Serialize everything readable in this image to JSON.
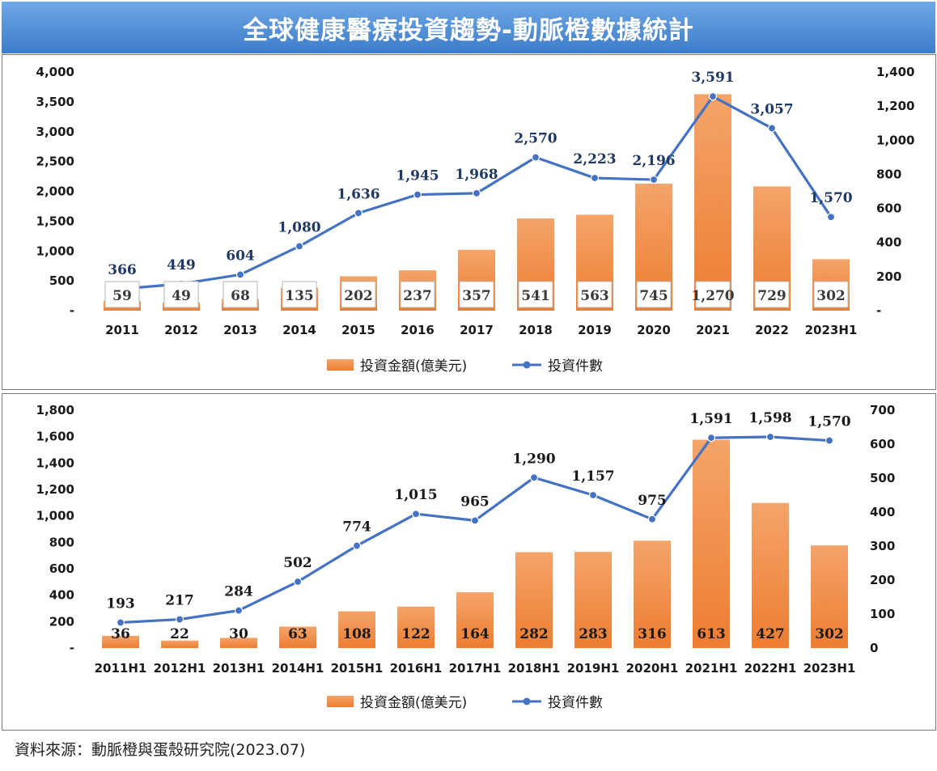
{
  "title": "全球健康醫療投資趨勢-動脈橙數據統計",
  "source": "資料來源：動脈橙與蛋殼研究院(2023.07)",
  "colors": {
    "bar": "#ED7D31",
    "line": "#4472C4",
    "title_bg": "#4F8BD6",
    "count_label": "#1F3864"
  },
  "chart_data": [
    {
      "type": "bar+line",
      "categories": [
        "2011",
        "2012",
        "2013",
        "2014",
        "2015",
        "2016",
        "2017",
        "2018",
        "2019",
        "2020",
        "2021",
        "2022",
        "2023H1"
      ],
      "left_axis": {
        "ticks": [
          "-",
          "500",
          "1,000",
          "1,500",
          "2,000",
          "2,500",
          "3,000",
          "3,500",
          "4,000"
        ],
        "ylim": [
          0,
          4000
        ]
      },
      "right_axis": {
        "ticks": [
          "-",
          "200",
          "400",
          "600",
          "800",
          "1,000",
          "1,200",
          "1,400"
        ],
        "ylim": [
          0,
          1400
        ]
      },
      "series": [
        {
          "name": "投資金額(億美元)",
          "type": "bar",
          "axis": "right",
          "values": [
            59,
            49,
            68,
            135,
            202,
            237,
            357,
            541,
            563,
            745,
            1270,
            729,
            302
          ],
          "labels": [
            "59",
            "49",
            "68",
            "135",
            "202",
            "237",
            "357",
            "541",
            "563",
            "745",
            "1,270",
            "729",
            "302"
          ]
        },
        {
          "name": "投資件數",
          "type": "line",
          "axis": "left",
          "values": [
            366,
            449,
            604,
            1080,
            1636,
            1945,
            1968,
            2570,
            2223,
            2196,
            3591,
            3057,
            1570
          ],
          "labels": [
            "366",
            "449",
            "604",
            "1,080",
            "1,636",
            "1,945",
            "1,968",
            "2,570",
            "2,223",
            "2,196",
            "3,591",
            "3,057",
            "1,570"
          ]
        }
      ],
      "legend": [
        "投資金額(億美元)",
        "投資件數"
      ]
    },
    {
      "type": "bar+line",
      "categories": [
        "2011H1",
        "2012H1",
        "2013H1",
        "2014H1",
        "2015H1",
        "2016H1",
        "2017H1",
        "2018H1",
        "2019H1",
        "2020H1",
        "2021H1",
        "2022H1",
        "2023H1"
      ],
      "left_axis": {
        "ticks": [
          "-",
          "200",
          "400",
          "600",
          "800",
          "1,000",
          "1,200",
          "1,400",
          "1,600",
          "1,800"
        ],
        "ylim": [
          0,
          1800
        ]
      },
      "right_axis": {
        "ticks": [
          "0",
          "100",
          "200",
          "300",
          "400",
          "500",
          "600",
          "700"
        ],
        "ylim": [
          0,
          700
        ]
      },
      "series": [
        {
          "name": "投資金額(億美元)",
          "type": "bar",
          "axis": "right",
          "values": [
            36,
            22,
            30,
            63,
            108,
            122,
            164,
            282,
            283,
            316,
            613,
            427,
            302
          ],
          "labels": [
            "36",
            "22",
            "30",
            "63",
            "108",
            "122",
            "164",
            "282",
            "283",
            "316",
            "613",
            "427",
            "302"
          ]
        },
        {
          "name": "投資件數",
          "type": "line",
          "axis": "left",
          "values": [
            193,
            217,
            284,
            502,
            774,
            1015,
            965,
            1290,
            1157,
            975,
            1591,
            1598,
            1570
          ],
          "labels": [
            "193",
            "217",
            "284",
            "502",
            "774",
            "1,015",
            "965",
            "1,290",
            "1,157",
            "975",
            "1,591",
            "1,598",
            "1,570"
          ]
        }
      ],
      "legend": [
        "投資金額(億美元)",
        "投資件數"
      ]
    }
  ]
}
